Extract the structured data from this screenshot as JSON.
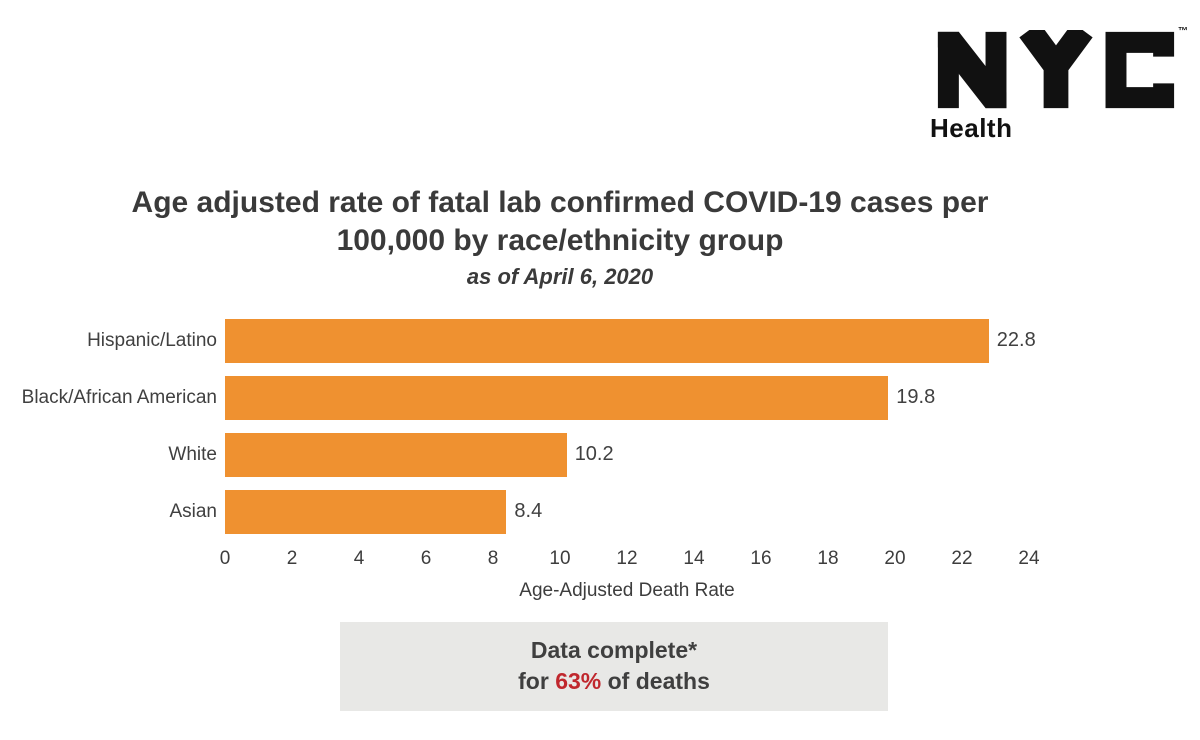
{
  "logo": {
    "brand": "NYC",
    "trademark": "™",
    "department": "Health"
  },
  "title": {
    "line1": "Age adjusted rate of fatal lab confirmed COVID-19 cases per",
    "line2": "100,000 by race/ethnicity group",
    "subtitle": "as of April 6, 2020"
  },
  "chart_data": {
    "type": "bar",
    "orientation": "horizontal",
    "categories": [
      "Hispanic/Latino",
      "Black/African American",
      "White",
      "Asian"
    ],
    "values": [
      22.8,
      19.8,
      10.2,
      8.4
    ],
    "value_labels": [
      "22.8",
      "19.8",
      "10.2",
      "8.4"
    ],
    "xlabel": "Age-Adjusted Death Rate",
    "xlim": [
      0,
      24
    ],
    "xticks": [
      0,
      2,
      4,
      6,
      8,
      10,
      12,
      14,
      16,
      18,
      20,
      22,
      24
    ],
    "grid": false,
    "legend": false,
    "bar_color": "#EF9130"
  },
  "note": {
    "line1": "Data complete*",
    "line2_prefix": "for ",
    "highlight": "63%",
    "line2_suffix": " of deaths",
    "highlight_color": "#C0272D",
    "background_color": "#E8E8E6"
  },
  "colors": {
    "text_dark": "#3A3A3A",
    "bar_orange": "#EF9130",
    "note_red": "#C0272D",
    "note_gray": "#E8E8E6"
  }
}
